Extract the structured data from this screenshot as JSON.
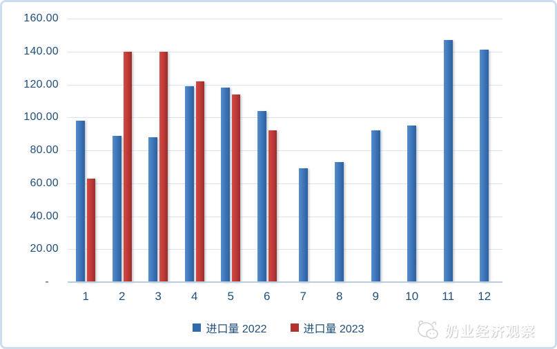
{
  "chart_data": {
    "type": "bar",
    "categories": [
      "1",
      "2",
      "3",
      "4",
      "5",
      "6",
      "7",
      "8",
      "9",
      "10",
      "11",
      "12"
    ],
    "series": [
      {
        "name": "进口量 2022",
        "color": "#2e6aae",
        "values": [
          98,
          89,
          88,
          119,
          118,
          104,
          69,
          73,
          92,
          95,
          147,
          141
        ]
      },
      {
        "name": "进口量 2023",
        "color": "#b23230",
        "values": [
          63,
          140,
          140,
          122,
          114,
          92,
          null,
          null,
          null,
          null,
          null,
          null
        ]
      }
    ],
    "title": "",
    "xlabel": "",
    "ylabel": "",
    "ylim": [
      0,
      160
    ],
    "ytick_step": 20,
    "ytick_labels_bottom_to_top": [
      "-",
      "20.00",
      "40.00",
      "60.00",
      "80.00",
      "100.00",
      "120.00",
      "140.00",
      "160.00"
    ],
    "grid": true,
    "legend_position": "bottom"
  },
  "legend": {
    "items": [
      {
        "label": "进口量 2022",
        "color": "#2e6aae"
      },
      {
        "label": "进口量 2023",
        "color": "#b23230"
      }
    ]
  },
  "watermark": {
    "text": "奶业经济观察",
    "logo": "cow-face-logo-icon"
  },
  "colors": {
    "bar_blue": "#3f78bb",
    "bar_red": "#c23b38",
    "gridline": "#d8e4f2",
    "axis_line": "#b7cce2",
    "tick_text": "#1f4e79",
    "frame_border": "#cdddf0"
  }
}
